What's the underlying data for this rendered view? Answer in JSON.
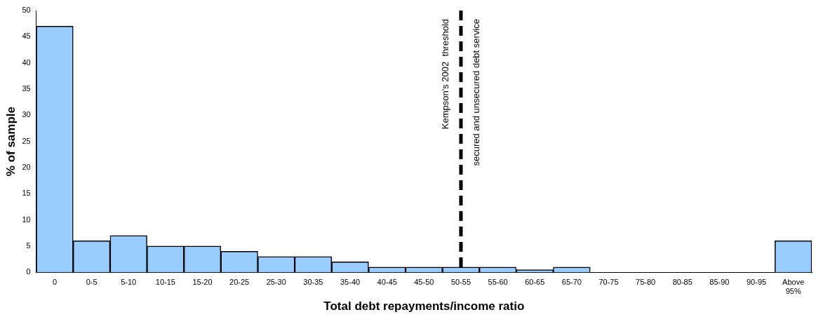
{
  "chart_data": {
    "type": "bar",
    "xlabel": "Total debt repayments/income ratio",
    "ylabel": "% of sample",
    "categories": [
      "0",
      "0-5",
      "5-10",
      "10-15",
      "15-20",
      "20-25",
      "25-30",
      "30-35",
      "35-40",
      "40-45",
      "45-50",
      "50-55",
      "55-60",
      "60-65",
      "65-70",
      "70-75",
      "75-80",
      "80-85",
      "85-90",
      "90-95",
      "Above 95%"
    ],
    "values": [
      47,
      6,
      7,
      5,
      5,
      4,
      3,
      3,
      2,
      1,
      1,
      1,
      1,
      0.5,
      1,
      0,
      0,
      0,
      0,
      0,
      6
    ],
    "color": "#99ccff",
    "ylim": [
      0,
      50
    ],
    "yticks": [
      0,
      5,
      10,
      15,
      20,
      25,
      30,
      35,
      40,
      45,
      50
    ],
    "grid": false,
    "legend": false,
    "ref_lines": [
      {
        "axis": "x",
        "value": "50-55",
        "label": "Kempson's 2002  threshold\nsecured and unsecured debt service",
        "color": "#000000",
        "line_style": "dashed"
      }
    ]
  }
}
